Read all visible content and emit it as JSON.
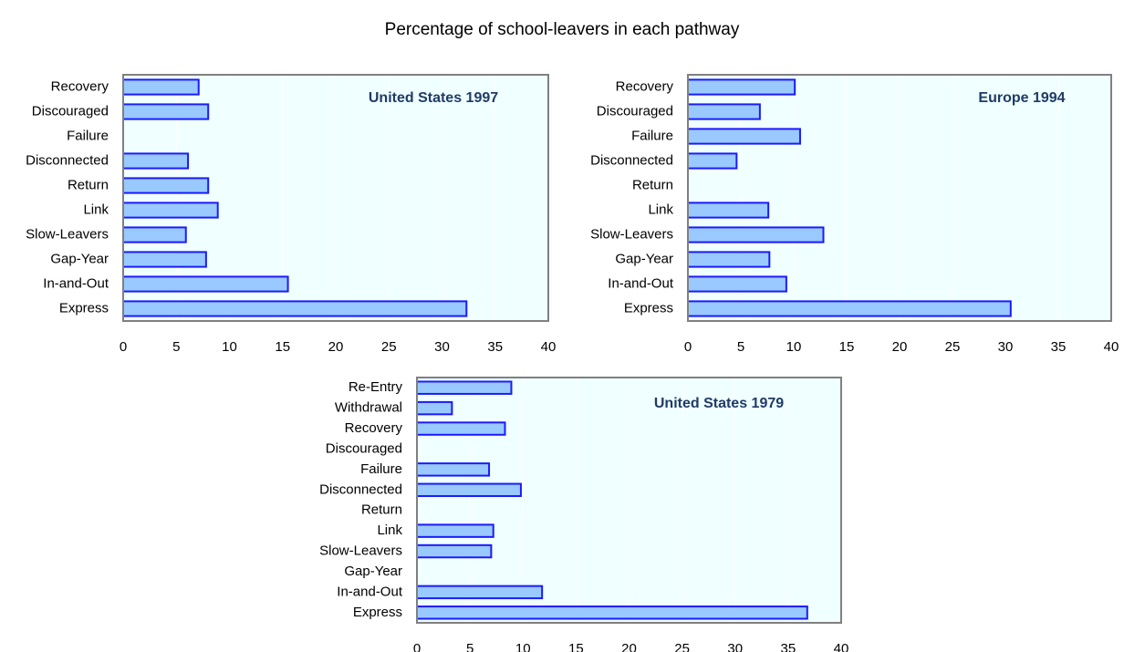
{
  "title": "Percentage of school-leavers in each pathway",
  "chart_data": [
    {
      "type": "bar",
      "orientation": "horizontal",
      "title": "United States  1997",
      "categories": [
        "Recovery",
        "Discouraged",
        "Failure",
        "Disconnected",
        "Return",
        "Link",
        "Slow-Leavers",
        "Gap-Year",
        "In-and-Out",
        "Express"
      ],
      "values": [
        7.1,
        8.0,
        null,
        6.1,
        8.0,
        8.9,
        5.9,
        7.8,
        15.5,
        32.3
      ],
      "color": "#99c9ff",
      "edgecolor": "#1a1aff",
      "background": "#f0ffff",
      "grid": true,
      "xlim": [
        0,
        40
      ],
      "xticks": [
        0,
        5,
        10,
        15,
        20,
        25,
        30,
        35,
        40
      ]
    },
    {
      "type": "bar",
      "orientation": "horizontal",
      "title": "Europe 1994",
      "categories": [
        "Recovery",
        "Discouraged",
        "Failure",
        "Disconnected",
        "Return",
        "Link",
        "Slow-Leavers",
        "Gap-Year",
        "In-and-Out",
        "Express"
      ],
      "values": [
        10.1,
        6.8,
        10.6,
        4.6,
        null,
        7.6,
        12.8,
        7.7,
        9.3,
        30.5
      ],
      "color": "#99c9ff",
      "edgecolor": "#1a1aff",
      "background": "#f0ffff",
      "grid": true,
      "xlim": [
        0,
        40
      ],
      "xticks": [
        0,
        5,
        10,
        15,
        20,
        25,
        30,
        35,
        40
      ]
    },
    {
      "type": "bar",
      "orientation": "horizontal",
      "title": "United States  1979",
      "categories": [
        "Re-Entry",
        "Withdrawal",
        "Recovery",
        "Discouraged",
        "Failure",
        "Disconnected",
        "Return",
        "Link",
        "Slow-Leavers",
        "Gap-Year",
        "In-and-Out",
        "Express"
      ],
      "values": [
        8.9,
        3.3,
        8.3,
        null,
        6.8,
        9.8,
        null,
        7.2,
        7.0,
        null,
        11.8,
        36.8
      ],
      "color": "#99c9ff",
      "edgecolor": "#1a1aff",
      "background": "#f0ffff",
      "grid": true,
      "xlim": [
        0,
        40
      ],
      "xticks": [
        0,
        5,
        10,
        15,
        20,
        25,
        30,
        35,
        40
      ]
    }
  ]
}
